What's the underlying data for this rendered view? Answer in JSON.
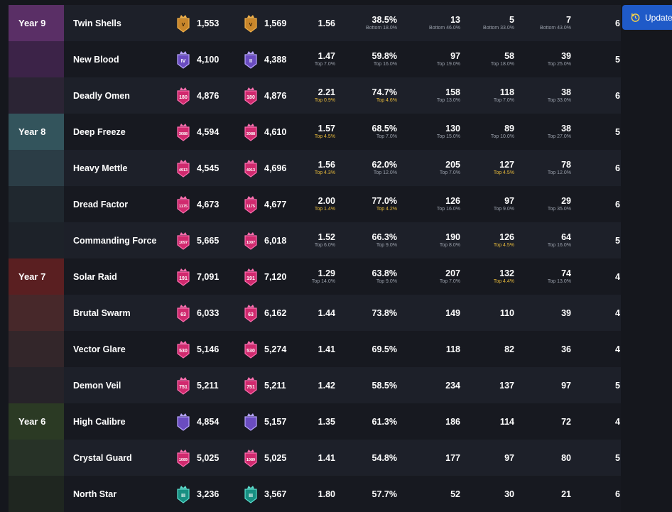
{
  "update_button": {
    "label": "Update"
  },
  "colors": {
    "year9": [
      "#5a2f66",
      "#3c2348",
      "#2b2434"
    ],
    "year8": [
      "#33545c",
      "#2b3d46",
      "#20282f",
      "#1d2229"
    ],
    "year7": [
      "#5a1f21",
      "#47282a",
      "#33262a",
      "#262329"
    ],
    "year6": [
      "#2b3a24",
      "#273227",
      "#1f2620"
    ],
    "gold_text": "#e6b93b",
    "accent_button": "#1f5ac8"
  },
  "rows": [
    {
      "year": "Year 9",
      "season": "Twin Shells",
      "r1_badge": "V",
      "r1": "1,553",
      "r2_badge": "V",
      "r2": "1,569",
      "kd": "1.56",
      "kd_sub": "",
      "win": "38.5%",
      "win_sub": "Bottom 18.0%",
      "c1": "13",
      "c1_sub": "Bottom 46.0%",
      "c2": "5",
      "c2_sub": "Bottom 33.0%",
      "c3": "7",
      "c3_sub": "Bottom 43.0%",
      "trunc": "6"
    },
    {
      "year": "",
      "season": "New Blood",
      "r1_badge": "IV",
      "r1": "4,100",
      "r2_badge": "II",
      "r2": "4,388",
      "kd": "1.47",
      "kd_sub": "Top 7.0%",
      "win": "59.8%",
      "win_sub": "Top 16.0%",
      "c1": "97",
      "c1_sub": "Top 19.0%",
      "c2": "58",
      "c2_sub": "Top 18.0%",
      "c3": "39",
      "c3_sub": "Top 25.0%",
      "trunc": "5"
    },
    {
      "year": "",
      "season": "Deadly Omen",
      "r1_badge": "180",
      "r1": "4,876",
      "r2_badge": "180",
      "r2": "4,876",
      "kd": "2.21",
      "kd_sub": "Top 0.9%",
      "win": "74.7%",
      "win_sub": "Top 4.6%",
      "c1": "158",
      "c1_sub": "Top 13.0%",
      "c2": "118",
      "c2_sub": "Top 7.0%",
      "c3": "38",
      "c3_sub": "Top 33.0%",
      "trunc": "6"
    },
    {
      "year": "Year 8",
      "season": "Deep Freeze",
      "r1_badge": "3088",
      "r1": "4,594",
      "r2_badge": "3088",
      "r2": "4,610",
      "kd": "1.57",
      "kd_sub": "Top 4.5%",
      "win": "68.5%",
      "win_sub": "Top 7.0%",
      "c1": "130",
      "c1_sub": "Top 15.0%",
      "c2": "89",
      "c2_sub": "Top 10.0%",
      "c3": "38",
      "c3_sub": "Top 27.0%",
      "trunc": "5"
    },
    {
      "year": "",
      "season": "Heavy Mettle",
      "r1_badge": "4913",
      "r1": "4,545",
      "r2_badge": "4913",
      "r2": "4,696",
      "kd": "1.56",
      "kd_sub": "Top 4.3%",
      "win": "62.0%",
      "win_sub": "Top 12.0%",
      "c1": "205",
      "c1_sub": "Top 7.0%",
      "c2": "127",
      "c2_sub": "Top 4.5%",
      "c3": "78",
      "c3_sub": "Top 12.0%",
      "trunc": "6"
    },
    {
      "year": "",
      "season": "Dread Factor",
      "r1_badge": "1175",
      "r1": "4,673",
      "r2_badge": "1175",
      "r2": "4,677",
      "kd": "2.00",
      "kd_sub": "Top 1.4%",
      "win": "77.0%",
      "win_sub": "Top 4.2%",
      "c1": "126",
      "c1_sub": "Top 16.0%",
      "c2": "97",
      "c2_sub": "Top 9.0%",
      "c3": "29",
      "c3_sub": "Top 35.0%",
      "trunc": "6"
    },
    {
      "year": "",
      "season": "Commanding Force",
      "r1_badge": "1097",
      "r1": "5,665",
      "r2_badge": "1097",
      "r2": "6,018",
      "kd": "1.52",
      "kd_sub": "Top 6.0%",
      "win": "66.3%",
      "win_sub": "Top 9.0%",
      "c1": "190",
      "c1_sub": "Top 8.0%",
      "c2": "126",
      "c2_sub": "Top 4.5%",
      "c3": "64",
      "c3_sub": "Top 16.0%",
      "trunc": "5"
    },
    {
      "year": "Year 7",
      "season": "Solar Raid",
      "r1_badge": "191",
      "r1": "7,091",
      "r2_badge": "191",
      "r2": "7,120",
      "kd": "1.29",
      "kd_sub": "Top 14.0%",
      "win": "63.8%",
      "win_sub": "Top 9.0%",
      "c1": "207",
      "c1_sub": "Top 7.0%",
      "c2": "132",
      "c2_sub": "Top 4.4%",
      "c3": "74",
      "c3_sub": "Top 13.0%",
      "trunc": "4"
    },
    {
      "year": "",
      "season": "Brutal Swarm",
      "r1_badge": "63",
      "r1": "6,033",
      "r2_badge": "63",
      "r2": "6,162",
      "kd": "1.44",
      "kd_sub": "",
      "win": "73.8%",
      "win_sub": "",
      "c1": "149",
      "c1_sub": "",
      "c2": "110",
      "c2_sub": "",
      "c3": "39",
      "c3_sub": "",
      "trunc": "4"
    },
    {
      "year": "",
      "season": "Vector Glare",
      "r1_badge": "530",
      "r1": "5,146",
      "r2_badge": "530",
      "r2": "5,274",
      "kd": "1.41",
      "kd_sub": "",
      "win": "69.5%",
      "win_sub": "",
      "c1": "118",
      "c1_sub": "",
      "c2": "82",
      "c2_sub": "",
      "c3": "36",
      "c3_sub": "",
      "trunc": "4"
    },
    {
      "year": "",
      "season": "Demon Veil",
      "r1_badge": "751",
      "r1": "5,211",
      "r2_badge": "751",
      "r2": "5,211",
      "kd": "1.42",
      "kd_sub": "",
      "win": "58.5%",
      "win_sub": "",
      "c1": "234",
      "c1_sub": "",
      "c2": "137",
      "c2_sub": "",
      "c3": "97",
      "c3_sub": "",
      "trunc": "5"
    },
    {
      "year": "Year 6",
      "season": "High Calibre",
      "r1_badge": "",
      "r1": "4,854",
      "r2_badge": "",
      "r2": "5,157",
      "kd": "1.35",
      "kd_sub": "",
      "win": "61.3%",
      "win_sub": "",
      "c1": "186",
      "c1_sub": "",
      "c2": "114",
      "c2_sub": "",
      "c3": "72",
      "c3_sub": "",
      "trunc": "4"
    },
    {
      "year": "",
      "season": "Crystal Guard",
      "r1_badge": "1089",
      "r1": "5,025",
      "r2_badge": "1089",
      "r2": "5,025",
      "kd": "1.41",
      "kd_sub": "",
      "win": "54.8%",
      "win_sub": "",
      "c1": "177",
      "c1_sub": "",
      "c2": "97",
      "c2_sub": "",
      "c3": "80",
      "c3_sub": "",
      "trunc": "5"
    },
    {
      "year": "",
      "season": "North Star",
      "r1_badge": "III",
      "r1": "3,236",
      "r2_badge": "III",
      "r2": "3,567",
      "kd": "1.80",
      "kd_sub": "",
      "win": "57.7%",
      "win_sub": "",
      "c1": "52",
      "c1_sub": "",
      "c2": "30",
      "c2_sub": "",
      "c3": "21",
      "c3_sub": "",
      "trunc": "6"
    }
  ],
  "badge_styles": {
    "gold": [
      "V"
    ],
    "purple": [
      "IV",
      "II"
    ],
    "teal": [
      "III"
    ]
  },
  "highlight_gold_subs": [
    "2.kd_sub",
    "2.win_sub",
    "3.kd_sub",
    "4.kd_sub",
    "4.c2_sub",
    "5.kd_sub",
    "5.win_sub",
    "6.c2_sub",
    "7.c2_sub"
  ]
}
